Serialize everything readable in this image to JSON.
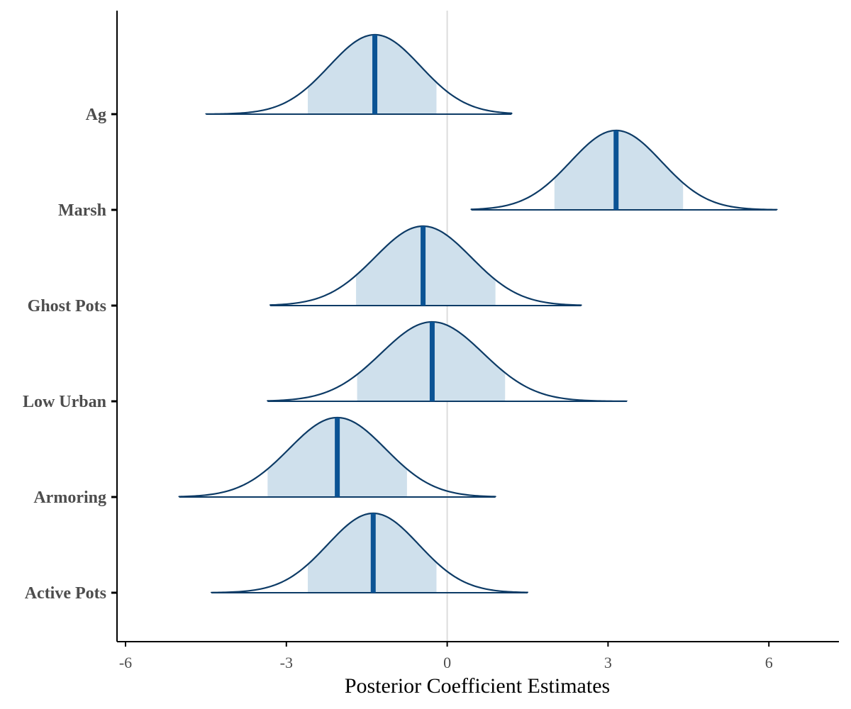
{
  "chart_data": {
    "type": "area",
    "subtype": "posterior-density-ridges",
    "title": "",
    "xlabel": "Posterior Coefficient Estimates",
    "ylabel": "",
    "xlim": [
      -6.2,
      7.3
    ],
    "x_ticks": [
      -6,
      -3,
      0,
      3,
      6
    ],
    "x_tick_labels": [
      "-6",
      "-3",
      "0",
      "3",
      "6"
    ],
    "reference_line_x": 0,
    "grid": false,
    "legend": "none",
    "colors": {
      "outline": "#0d3b66",
      "interval_fill": "#cfe0ec",
      "median_line": "#0b5394",
      "reference_line": "#dddddd",
      "axis": "#000000"
    },
    "categories": [
      "Ag",
      "Marsh",
      "Ghost Pots",
      "Low Urban",
      "Armoring",
      "Active Pots"
    ],
    "series": [
      {
        "name": "Ag",
        "median": -1.35,
        "mean": -1.35,
        "sd": 0.85,
        "interval": [
          -2.6,
          -0.2
        ],
        "range": [
          -4.5,
          1.2
        ]
      },
      {
        "name": "Marsh",
        "median": 3.15,
        "mean": 3.15,
        "sd": 0.85,
        "interval": [
          2.0,
          4.4
        ],
        "range": [
          0.45,
          6.15
        ]
      },
      {
        "name": "Ghost Pots",
        "median": -0.45,
        "mean": -0.45,
        "sd": 0.9,
        "interval": [
          -1.7,
          0.9
        ],
        "range": [
          -3.3,
          2.5
        ]
      },
      {
        "name": "Low Urban",
        "median": -0.28,
        "mean": -0.28,
        "sd": 0.95,
        "interval": [
          -1.68,
          1.08
        ],
        "range": [
          -3.35,
          3.35
        ]
      },
      {
        "name": "Armoring",
        "median": -2.05,
        "mean": -2.05,
        "sd": 0.9,
        "interval": [
          -3.35,
          -0.75
        ],
        "range": [
          -5.0,
          0.9
        ]
      },
      {
        "name": "Active Pots",
        "median": -1.38,
        "mean": -1.38,
        "sd": 0.85,
        "interval": [
          -2.6,
          -0.2
        ],
        "range": [
          -4.4,
          1.5
        ]
      }
    ]
  }
}
